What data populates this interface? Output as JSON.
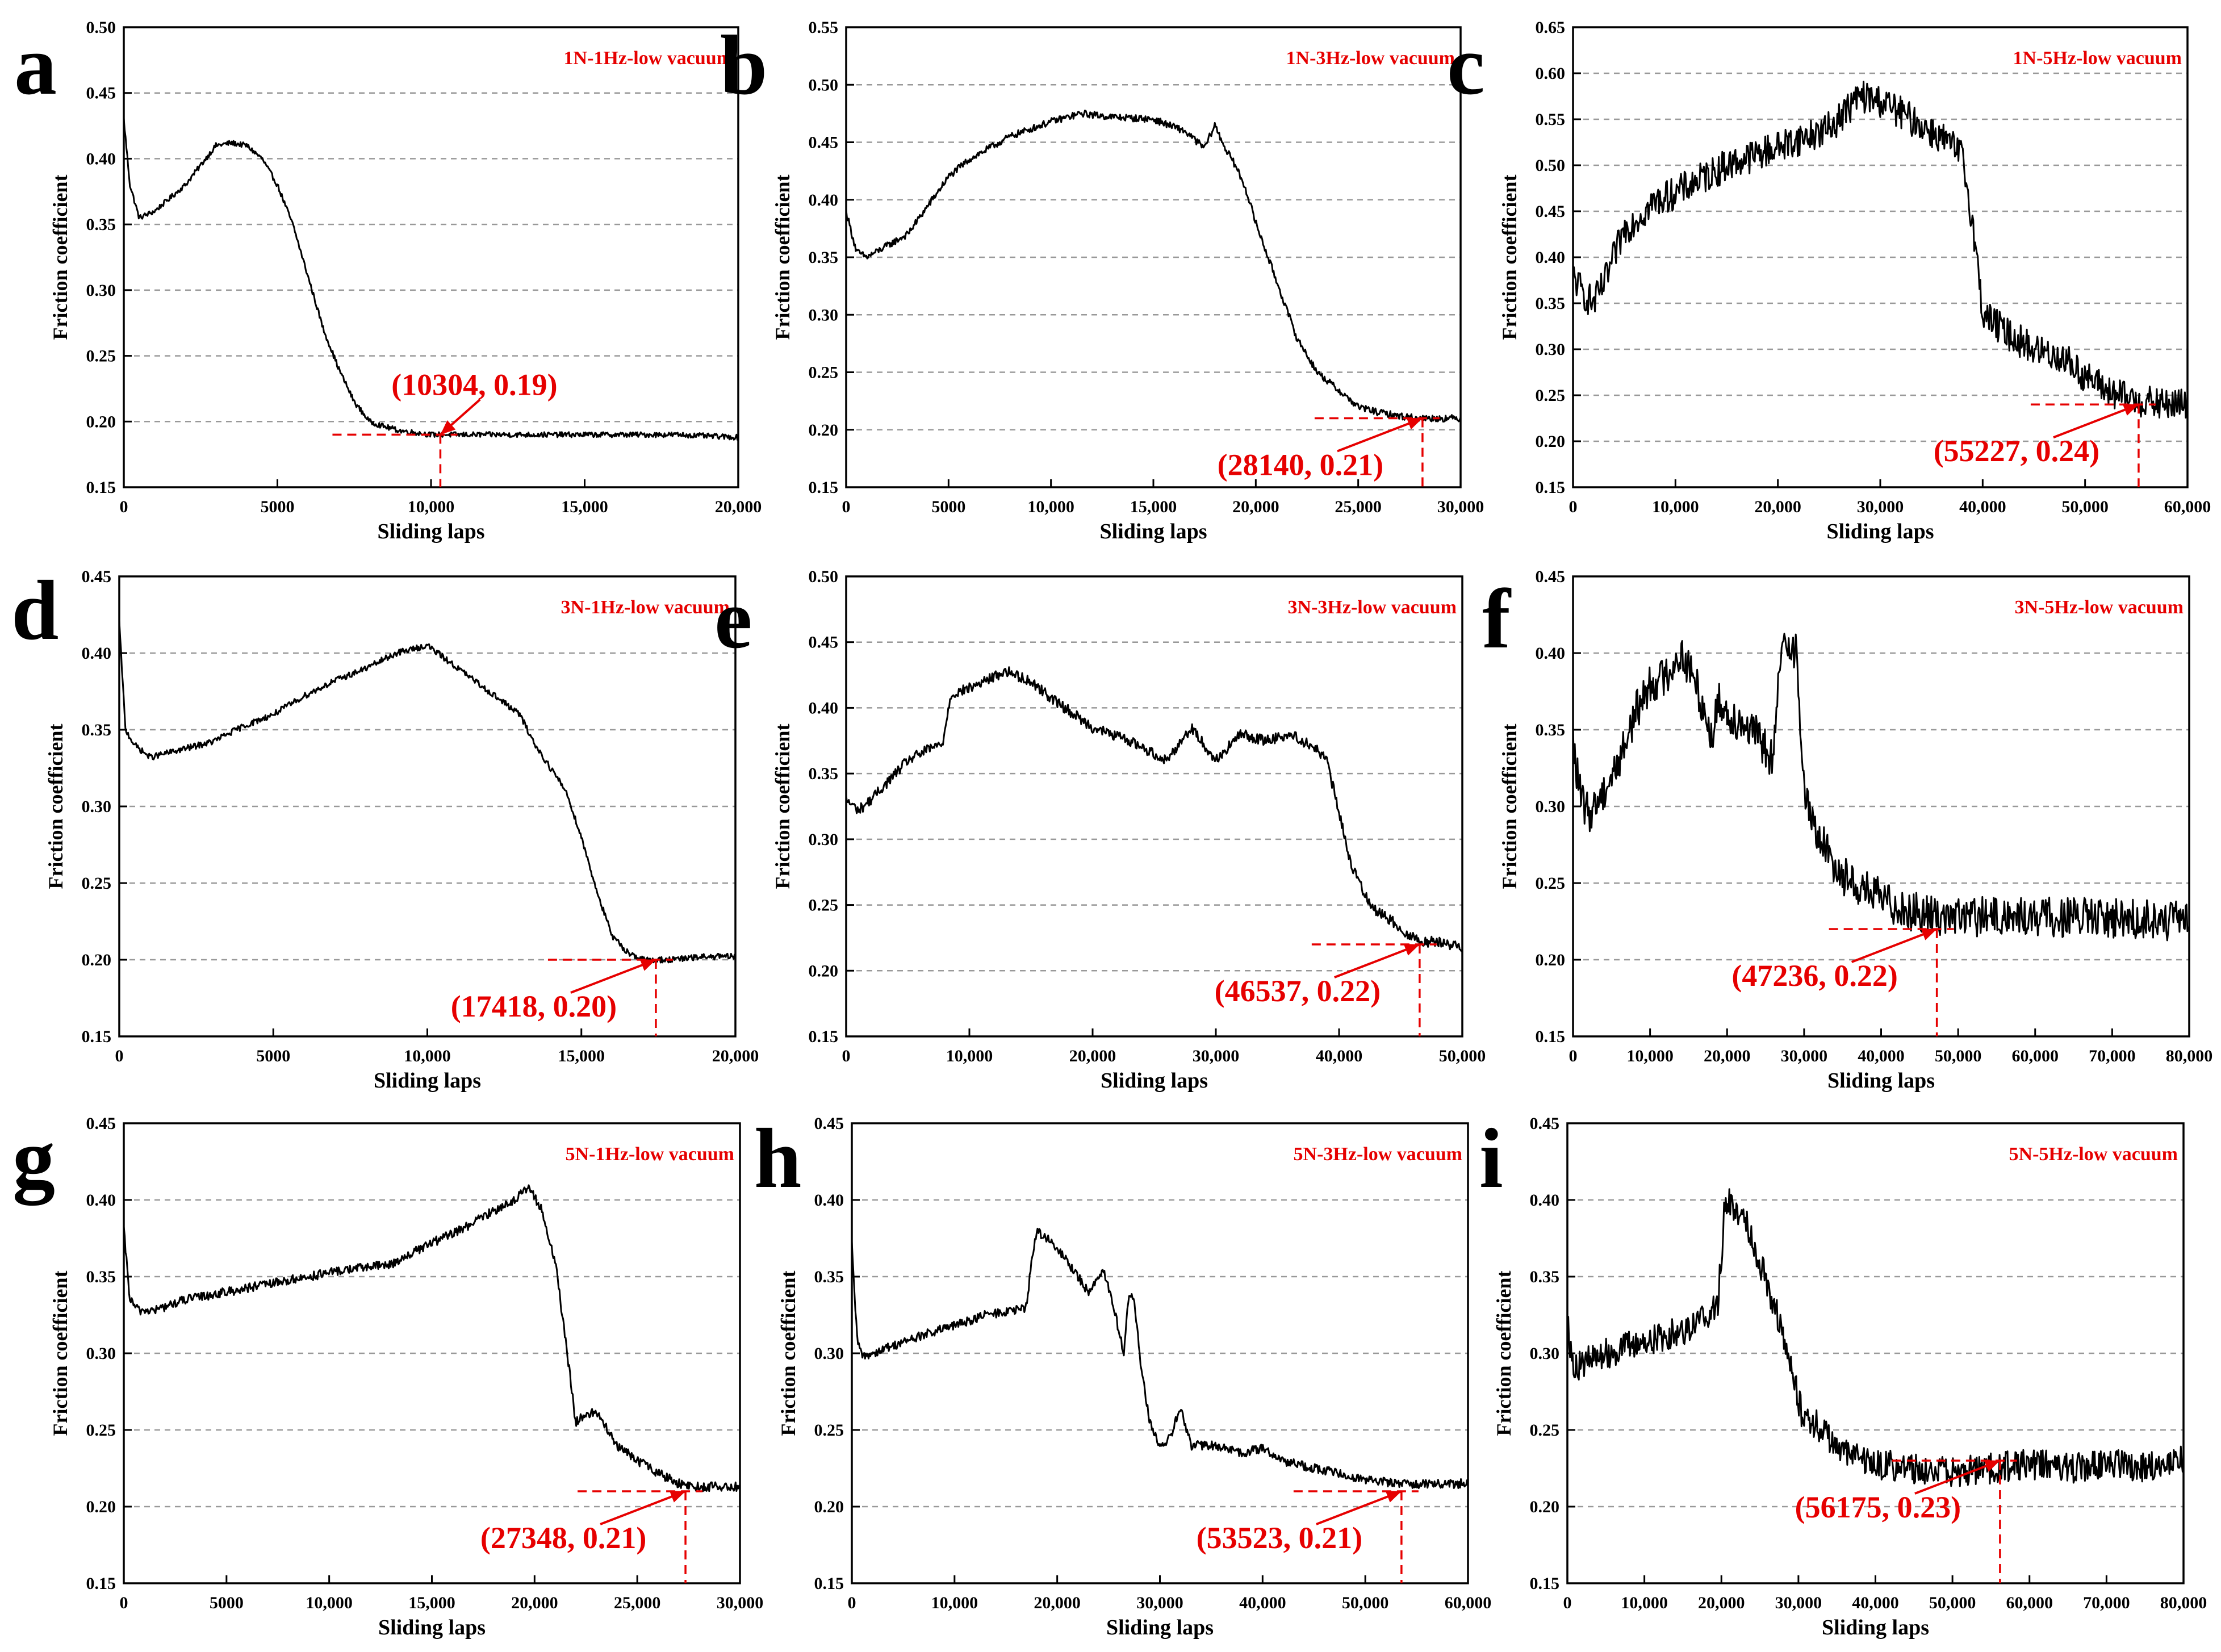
{
  "chart_data": [
    {
      "panel": "a",
      "type": "line",
      "legend_label": "1N-1Hz-low vacuum",
      "xlabel": "Sliding laps",
      "ylabel": "Friction coefficient",
      "xlim": [
        0,
        20000
      ],
      "ylim": [
        0.15,
        0.5
      ],
      "xticks": [
        "0",
        "5000",
        "10,000",
        "15,000",
        "20,000"
      ],
      "yticks": [
        "0.15",
        "0.20",
        "0.25",
        "0.30",
        "0.35",
        "0.40",
        "0.45",
        "0.50"
      ],
      "annotation": {
        "label": "(10304, 0.19)",
        "x": 10304,
        "y": 0.19
      },
      "series": [
        {
          "name": "1N-1Hz-low vacuum",
          "noise": 0.002,
          "x": [
            0,
            200,
            500,
            1000,
            1500,
            2000,
            2500,
            3000,
            3500,
            4000,
            4500,
            5000,
            5500,
            6000,
            6500,
            7000,
            7500,
            8000,
            8500,
            9000,
            10000,
            11000,
            12000,
            14000,
            16000,
            18000,
            20000
          ],
          "y": [
            0.43,
            0.38,
            0.355,
            0.36,
            0.37,
            0.38,
            0.395,
            0.41,
            0.412,
            0.41,
            0.4,
            0.38,
            0.35,
            0.31,
            0.27,
            0.24,
            0.215,
            0.2,
            0.196,
            0.193,
            0.19,
            0.19,
            0.19,
            0.19,
            0.19,
            0.19,
            0.188
          ]
        }
      ]
    },
    {
      "panel": "b",
      "type": "line",
      "legend_label": "1N-3Hz-low vacuum",
      "xlabel": "Sliding laps",
      "ylabel": "Friction coefficient",
      "xlim": [
        0,
        30000
      ],
      "ylim": [
        0.15,
        0.55
      ],
      "xticks": [
        "0",
        "5000",
        "10,000",
        "15,000",
        "20,000",
        "25,000",
        "30,000"
      ],
      "yticks": [
        "0.15",
        "0.20",
        "0.25",
        "0.30",
        "0.35",
        "0.40",
        "0.45",
        "0.50",
        "0.55"
      ],
      "annotation": {
        "label": "(28140, 0.21)",
        "x": 28140,
        "y": 0.21
      },
      "series": [
        {
          "name": "1N-3Hz-low vacuum",
          "noise": 0.003,
          "x": [
            0,
            500,
            1000,
            2000,
            3000,
            4000,
            5000,
            6000,
            8000,
            10000,
            11500,
            13000,
            15000,
            16500,
            17500,
            18000,
            18500,
            19000,
            19500,
            20000,
            21000,
            22000,
            23000,
            24000,
            25000,
            26000,
            27000,
            28000,
            29000,
            30000
          ],
          "y": [
            0.39,
            0.355,
            0.35,
            0.36,
            0.37,
            0.395,
            0.42,
            0.435,
            0.455,
            0.468,
            0.475,
            0.472,
            0.47,
            0.46,
            0.445,
            0.465,
            0.445,
            0.43,
            0.41,
            0.38,
            0.33,
            0.28,
            0.25,
            0.235,
            0.22,
            0.215,
            0.212,
            0.21,
            0.21,
            0.21
          ]
        }
      ]
    },
    {
      "panel": "c",
      "type": "line",
      "legend_label": "1N-5Hz-low vacuum",
      "xlabel": "Sliding laps",
      "ylabel": "Friction coefficient",
      "xlim": [
        0,
        60000
      ],
      "ylim": [
        0.15,
        0.65
      ],
      "xticks": [
        "0",
        "10,000",
        "20,000",
        "30,000",
        "40,000",
        "50,000",
        "60,000"
      ],
      "yticks": [
        "0.15",
        "0.20",
        "0.25",
        "0.30",
        "0.35",
        "0.40",
        "0.45",
        "0.50",
        "0.55",
        "0.60",
        "0.65"
      ],
      "annotation": {
        "label": "(55227, 0.24)",
        "x": 55227,
        "y": 0.24
      },
      "series": [
        {
          "name": "1N-5Hz-low vacuum",
          "noise": 0.018,
          "x": [
            0,
            1000,
            2000,
            3000,
            5000,
            8000,
            10000,
            15000,
            20000,
            25000,
            28000,
            30000,
            33000,
            36000,
            38000,
            39000,
            40000,
            42000,
            45000,
            48000,
            50000,
            53000,
            55000,
            57000,
            60000
          ],
          "y": [
            0.38,
            0.36,
            0.35,
            0.37,
            0.43,
            0.46,
            0.47,
            0.5,
            0.52,
            0.54,
            0.575,
            0.57,
            0.55,
            0.53,
            0.51,
            0.44,
            0.34,
            0.32,
            0.3,
            0.29,
            0.27,
            0.25,
            0.245,
            0.24,
            0.24
          ]
        }
      ]
    },
    {
      "panel": "d",
      "type": "line",
      "legend_label": "3N-1Hz-low vacuum",
      "xlabel": "Sliding laps",
      "ylabel": "Friction coefficient",
      "xlim": [
        0,
        20000
      ],
      "ylim": [
        0.15,
        0.45
      ],
      "xticks": [
        "0",
        "5000",
        "10,000",
        "15,000",
        "20,000"
      ],
      "yticks": [
        "0.15",
        "0.20",
        "0.25",
        "0.30",
        "0.35",
        "0.40",
        "0.45"
      ],
      "annotation": {
        "label": "(17418, 0.20)",
        "x": 17418,
        "y": 0.2
      },
      "series": [
        {
          "name": "3N-1Hz-low vacuum",
          "noise": 0.002,
          "x": [
            0,
            200,
            500,
            1000,
            2000,
            3000,
            4000,
            5000,
            6000,
            7000,
            8000,
            9000,
            10000,
            11000,
            12000,
            13000,
            13500,
            14000,
            14500,
            15000,
            15500,
            16000,
            16500,
            17000,
            18000,
            19000,
            20000
          ],
          "y": [
            0.42,
            0.35,
            0.34,
            0.332,
            0.337,
            0.342,
            0.352,
            0.36,
            0.372,
            0.382,
            0.39,
            0.4,
            0.405,
            0.39,
            0.375,
            0.36,
            0.34,
            0.325,
            0.31,
            0.28,
            0.245,
            0.215,
            0.205,
            0.2,
            0.2,
            0.202,
            0.202
          ]
        }
      ]
    },
    {
      "panel": "e",
      "type": "line",
      "legend_label": "3N-3Hz-low vacuum",
      "xlabel": "Sliding laps",
      "ylabel": "Friction coefficient",
      "xlim": [
        0,
        50000
      ],
      "ylim": [
        0.15,
        0.5
      ],
      "xticks": [
        "0",
        "10,000",
        "20,000",
        "30,000",
        "40,000",
        "50,000"
      ],
      "yticks": [
        "0.15",
        "0.20",
        "0.25",
        "0.30",
        "0.35",
        "0.40",
        "0.45",
        "0.50"
      ],
      "annotation": {
        "label": "(46537, 0.22)",
        "x": 46537,
        "y": 0.22
      },
      "series": [
        {
          "name": "3N-3Hz-low vacuum",
          "noise": 0.004,
          "x": [
            0,
            1000,
            2000,
            3000,
            5000,
            7000,
            7800,
            8500,
            10000,
            13000,
            15000,
            17000,
            20000,
            23000,
            26000,
            28000,
            30000,
            32000,
            34000,
            36000,
            38000,
            39000,
            40000,
            41000,
            42000,
            43000,
            44000,
            45000,
            46000,
            47000,
            48000,
            50000
          ],
          "y": [
            0.33,
            0.322,
            0.33,
            0.34,
            0.36,
            0.37,
            0.372,
            0.41,
            0.415,
            0.428,
            0.42,
            0.405,
            0.385,
            0.375,
            0.36,
            0.385,
            0.36,
            0.38,
            0.375,
            0.38,
            0.37,
            0.36,
            0.32,
            0.28,
            0.26,
            0.245,
            0.24,
            0.232,
            0.225,
            0.222,
            0.222,
            0.218
          ]
        }
      ]
    },
    {
      "panel": "f",
      "type": "line",
      "legend_label": "3N-5Hz-low vacuum",
      "xlabel": "Sliding laps",
      "ylabel": "Friction coefficient",
      "xlim": [
        0,
        80000
      ],
      "ylim": [
        0.15,
        0.45
      ],
      "xticks": [
        "0",
        "10,000",
        "20,000",
        "30,000",
        "40,000",
        "50,000",
        "60,000",
        "70,000",
        "80,000"
      ],
      "yticks": [
        "0.15",
        "0.20",
        "0.25",
        "0.30",
        "0.35",
        "0.40",
        "0.45"
      ],
      "annotation": {
        "label": "(47236, 0.22)",
        "x": 47236,
        "y": 0.22
      },
      "series": [
        {
          "name": "3N-5Hz-low vacuum",
          "noise": 0.013,
          "x": [
            0,
            1000,
            2000,
            4000,
            6000,
            8000,
            10000,
            12000,
            14000,
            16000,
            18000,
            19000,
            20000,
            22000,
            24000,
            26000,
            27000,
            28000,
            29000,
            30000,
            31000,
            33000,
            35000,
            38000,
            42000,
            45000,
            50000,
            60000,
            70000,
            80000
          ],
          "y": [
            0.34,
            0.305,
            0.295,
            0.31,
            0.33,
            0.36,
            0.38,
            0.385,
            0.4,
            0.38,
            0.345,
            0.37,
            0.36,
            0.355,
            0.345,
            0.33,
            0.4,
            0.41,
            0.4,
            0.31,
            0.29,
            0.27,
            0.255,
            0.245,
            0.235,
            0.23,
            0.228,
            0.228,
            0.227,
            0.225
          ]
        }
      ]
    },
    {
      "panel": "g",
      "type": "line",
      "legend_label": "5N-1Hz-low vacuum",
      "xlabel": "Sliding laps",
      "ylabel": "Friction coefficient",
      "xlim": [
        0,
        30000
      ],
      "ylim": [
        0.15,
        0.45
      ],
      "xticks": [
        "0",
        "5000",
        "10,000",
        "15,000",
        "20,000",
        "25,000",
        "30,000"
      ],
      "yticks": [
        "0.15",
        "0.20",
        "0.25",
        "0.30",
        "0.35",
        "0.40",
        "0.45"
      ],
      "annotation": {
        "label": "(27348, 0.21)",
        "x": 27348,
        "y": 0.21
      },
      "series": [
        {
          "name": "5N-1Hz-low vacuum",
          "noise": 0.003,
          "x": [
            0,
            300,
            700,
            1500,
            3000,
            5000,
            7000,
            9000,
            11000,
            13000,
            14000,
            15000,
            16000,
            17000,
            18000,
            19000,
            19700,
            20300,
            21000,
            21500,
            22000,
            22500,
            23000,
            24000,
            25000,
            26000,
            27000,
            28000,
            30000
          ],
          "y": [
            0.38,
            0.335,
            0.328,
            0.328,
            0.335,
            0.34,
            0.345,
            0.35,
            0.355,
            0.358,
            0.365,
            0.372,
            0.378,
            0.385,
            0.393,
            0.4,
            0.408,
            0.395,
            0.36,
            0.31,
            0.255,
            0.26,
            0.262,
            0.24,
            0.23,
            0.222,
            0.215,
            0.213,
            0.213
          ]
        }
      ]
    },
    {
      "panel": "h",
      "type": "line",
      "legend_label": "5N-3Hz-low vacuum",
      "xlabel": "Sliding laps",
      "ylabel": "Friction coefficient",
      "xlim": [
        0,
        60000
      ],
      "ylim": [
        0.15,
        0.45
      ],
      "xticks": [
        "0",
        "10,000",
        "20,000",
        "30,000",
        "40,000",
        "50,000",
        "60,000"
      ],
      "yticks": [
        "0.15",
        "0.20",
        "0.25",
        "0.30",
        "0.35",
        "0.40",
        "0.45"
      ],
      "annotation": {
        "label": "(53523, 0.21)",
        "x": 53523,
        "y": 0.21
      },
      "series": [
        {
          "name": "5N-3Hz-low vacuum",
          "noise": 0.003,
          "x": [
            0,
            500,
            1000,
            2000,
            4000,
            7000,
            10000,
            13000,
            16000,
            17000,
            17500,
            18000,
            19000,
            21000,
            23000,
            24500,
            25500,
            26500,
            27000,
            27500,
            28000,
            29000,
            30000,
            31000,
            32000,
            33000,
            35000,
            38000,
            40000,
            42000,
            45000,
            50000,
            53000,
            55000,
            60000
          ],
          "y": [
            0.37,
            0.31,
            0.298,
            0.3,
            0.305,
            0.312,
            0.318,
            0.325,
            0.328,
            0.33,
            0.36,
            0.38,
            0.375,
            0.36,
            0.34,
            0.355,
            0.33,
            0.3,
            0.34,
            0.335,
            0.3,
            0.255,
            0.238,
            0.245,
            0.265,
            0.24,
            0.24,
            0.235,
            0.238,
            0.23,
            0.225,
            0.218,
            0.215,
            0.215,
            0.215
          ]
        }
      ]
    },
    {
      "panel": "i",
      "type": "line",
      "legend_label": "5N-5Hz-low vacuum",
      "xlabel": "Sliding laps",
      "ylabel": "Friction coefficient",
      "xlim": [
        0,
        80000
      ],
      "ylim": [
        0.15,
        0.45
      ],
      "xticks": [
        "0",
        "10,000",
        "20,000",
        "30,000",
        "40,000",
        "50,000",
        "60,000",
        "70,000",
        "80,000"
      ],
      "yticks": [
        "0.15",
        "0.20",
        "0.25",
        "0.30",
        "0.35",
        "0.40",
        "0.45"
      ],
      "annotation": {
        "label": "(56175, 0.23)",
        "x": 56175,
        "y": 0.23
      },
      "series": [
        {
          "name": "5N-5Hz-low vacuum",
          "noise": 0.01,
          "x": [
            0,
            500,
            1500,
            4000,
            8000,
            12000,
            15000,
            18000,
            19500,
            20500,
            21500,
            23000,
            25000,
            27000,
            29000,
            30500,
            32000,
            34000,
            36000,
            40000,
            45000,
            50000,
            55000,
            60000,
            65000,
            70000,
            75000,
            80000
          ],
          "y": [
            0.33,
            0.295,
            0.292,
            0.298,
            0.305,
            0.31,
            0.315,
            0.325,
            0.33,
            0.4,
            0.395,
            0.39,
            0.36,
            0.33,
            0.29,
            0.26,
            0.255,
            0.245,
            0.235,
            0.228,
            0.225,
            0.222,
            0.225,
            0.228,
            0.225,
            0.228,
            0.226,
            0.23
          ]
        }
      ]
    }
  ]
}
